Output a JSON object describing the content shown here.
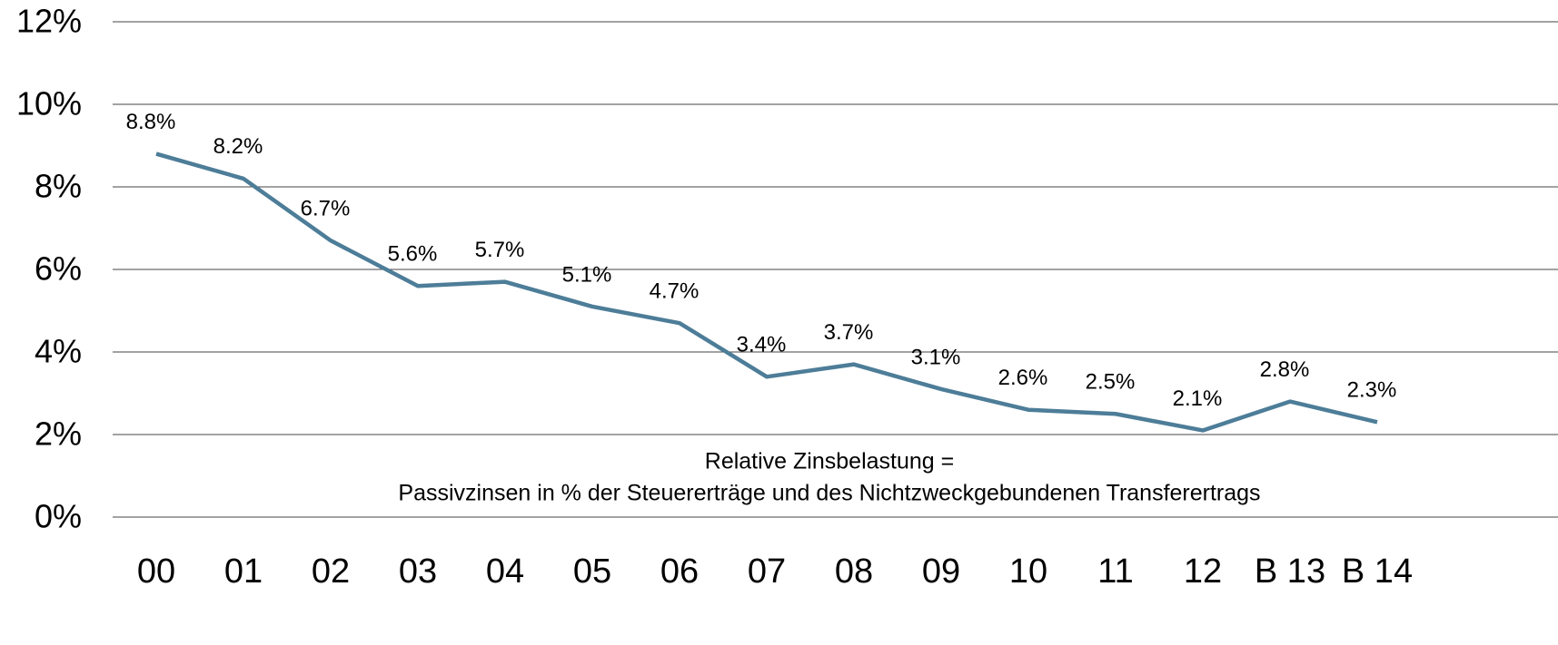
{
  "chart_data": {
    "type": "line",
    "categories": [
      "00",
      "01",
      "02",
      "03",
      "04",
      "05",
      "06",
      "07",
      "08",
      "09",
      "10",
      "11",
      "12",
      "B 13",
      "B 14"
    ],
    "series": [
      {
        "name": "Relative Zinsbelastung",
        "color": "#4d7d98",
        "values": [
          8.8,
          8.2,
          6.7,
          5.6,
          5.7,
          5.1,
          4.7,
          3.4,
          3.7,
          3.1,
          2.6,
          2.5,
          2.1,
          2.8,
          2.3
        ],
        "value_labels": [
          "8.8%",
          "8.2%",
          "6.7%",
          "5.6%",
          "5.7%",
          "5.1%",
          "4.7%",
          "3.4%",
          "3.7%",
          "3.1%",
          "2.6%",
          "2.5%",
          "2.1%",
          "2.8%",
          "2.3%"
        ]
      }
    ],
    "ylim": [
      0,
      12
    ],
    "yticks": [
      {
        "value": 0,
        "label": "0%"
      },
      {
        "value": 2,
        "label": "2%"
      },
      {
        "value": 4,
        "label": "4%"
      },
      {
        "value": 6,
        "label": "6%"
      },
      {
        "value": 8,
        "label": "8%"
      },
      {
        "value": 10,
        "label": "10%"
      },
      {
        "value": 12,
        "label": "12%"
      }
    ],
    "grid": true,
    "annotations": [
      "Relative Zinsbelastung =",
      "Passivzinsen in % der Steuererträge und des Nichtzweckgebundenen Transferertrags"
    ]
  }
}
